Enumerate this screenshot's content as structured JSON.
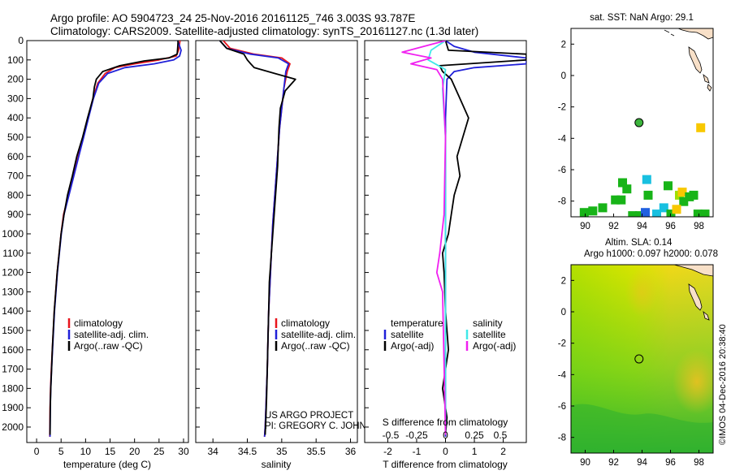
{
  "header": {
    "line1": "Argo profile: AO 5904723_24 25-Nov-2016 20161125_746 3.003S 93.787E",
    "line2": "Climatology: CARS2009. Satellite-adjusted climatology: synTS_20161127.nc (1.3d later)"
  },
  "credits": {
    "project": "US ARGO PROJECT",
    "pi": "PI: GREGORY C. JOHNSON",
    "vertical": "©IMOS 04-Dec-2016 20:38:40"
  },
  "colors": {
    "climatology": "#e8141c",
    "satellite": "#2020d8",
    "argo": "#000000",
    "sal_satellite": "#40e8e8",
    "sal_argo": "#f020f0",
    "marker": "#3cb43c"
  },
  "chart_data": [
    {
      "id": "temperature",
      "type": "line",
      "xlabel": "temperature (deg C)",
      "ylabel": "",
      "xlim": [
        -2,
        31
      ],
      "ylim": [
        2080,
        0
      ],
      "xticks": [
        "0",
        "5",
        "10",
        "15",
        "20",
        "25",
        "30"
      ],
      "xtick_values": [
        0,
        5,
        10,
        15,
        20,
        25,
        30
      ],
      "yticks": [
        "0",
        "100",
        "200",
        "300",
        "400",
        "500",
        "600",
        "700",
        "800",
        "900",
        "1000",
        "1100",
        "1200",
        "1300",
        "1400",
        "1500",
        "1600",
        "1700",
        "1800",
        "1900",
        "2000"
      ],
      "ytick_values": [
        0,
        100,
        200,
        300,
        400,
        500,
        600,
        700,
        800,
        900,
        1000,
        1100,
        1200,
        1300,
        1400,
        1500,
        1600,
        1700,
        1800,
        1900,
        2000
      ],
      "legend": [
        "climatology",
        "satellite-adj. clim.",
        "Argo(..raw -QC)"
      ],
      "series": [
        {
          "name": "climatology",
          "color": "#e8141c",
          "x": [
            29.3,
            29.0,
            28.5,
            25.0,
            20.0,
            16.0,
            14.0,
            12.5,
            11.5,
            10.5,
            9.5,
            8.5,
            7.5,
            6.5,
            5.5,
            5.0,
            4.6,
            4.2,
            3.9,
            3.6,
            3.4,
            3.2,
            3.0,
            2.85,
            2.75,
            2.7
          ],
          "y": [
            0,
            50,
            80,
            100,
            120,
            140,
            170,
            220,
            300,
            400,
            500,
            600,
            700,
            800,
            900,
            1000,
            1100,
            1200,
            1300,
            1400,
            1500,
            1600,
            1700,
            1800,
            1900,
            2050
          ]
        },
        {
          "name": "satellite-adj. clim.",
          "color": "#2020d8",
          "x": [
            28.8,
            29.5,
            29.2,
            28.0,
            24.0,
            18.0,
            14.5,
            12.7,
            11.6,
            10.6,
            9.6,
            8.6,
            7.6,
            6.6,
            5.6,
            5.05,
            4.65,
            4.25,
            3.95,
            3.65,
            3.45,
            3.25,
            3.05,
            2.9,
            2.8,
            2.75
          ],
          "y": [
            0,
            50,
            80,
            100,
            120,
            140,
            170,
            220,
            300,
            400,
            500,
            600,
            700,
            800,
            900,
            1000,
            1100,
            1200,
            1300,
            1400,
            1500,
            1600,
            1700,
            1800,
            1900,
            2050
          ]
        },
        {
          "name": "Argo(..raw -QC)",
          "color": "#000000",
          "x": [
            28.9,
            28.8,
            28.7,
            27.0,
            22.0,
            17.0,
            13.5,
            12.2,
            11.8,
            11.5,
            10.4,
            9.4,
            8.2,
            7.3,
            6.3,
            5.6,
            5.0,
            4.6,
            4.2,
            3.9,
            3.6,
            3.4,
            3.2,
            3.05,
            2.9,
            2.8,
            2.75
          ],
          "y": [
            0,
            40,
            70,
            90,
            105,
            130,
            160,
            200,
            240,
            300,
            400,
            500,
            600,
            700,
            800,
            900,
            1000,
            1100,
            1200,
            1300,
            1400,
            1500,
            1600,
            1700,
            1800,
            1900,
            2040
          ]
        }
      ]
    },
    {
      "id": "salinity",
      "type": "line",
      "xlabel": "salinity",
      "xlim": [
        33.75,
        36.1
      ],
      "ylim": [
        2080,
        0
      ],
      "xticks": [
        "34",
        "34.5",
        "35",
        "35.5",
        "36"
      ],
      "xtick_values": [
        34,
        34.5,
        35,
        35.5,
        36
      ],
      "legend": [
        "climatology",
        "satellite-adj. clim.",
        "Argo(..raw -QC)"
      ],
      "series": [
        {
          "name": "climatology",
          "color": "#e8141c",
          "x": [
            34.15,
            34.25,
            34.6,
            35.0,
            35.12,
            35.08,
            35.03,
            35.0,
            34.97,
            34.95,
            34.93,
            34.91,
            34.89,
            34.87,
            34.85,
            34.83,
            34.81,
            34.8,
            34.79,
            34.78,
            34.77,
            34.76,
            34.75
          ],
          "y": [
            0,
            40,
            70,
            90,
            120,
            160,
            250,
            350,
            450,
            550,
            650,
            750,
            850,
            950,
            1100,
            1250,
            1400,
            1550,
            1700,
            1800,
            1900,
            2000,
            2050
          ]
        },
        {
          "name": "satellite-adj. clim.",
          "color": "#2020d8",
          "x": [
            34.1,
            34.2,
            34.55,
            34.95,
            35.1,
            35.06,
            35.03,
            35.0,
            34.97,
            34.95,
            34.93,
            34.91,
            34.89,
            34.87,
            34.85,
            34.83,
            34.81,
            34.8,
            34.79,
            34.78,
            34.77,
            34.76,
            34.75
          ],
          "y": [
            0,
            40,
            70,
            90,
            120,
            160,
            250,
            350,
            450,
            550,
            650,
            750,
            850,
            950,
            1100,
            1250,
            1400,
            1550,
            1700,
            1800,
            1900,
            2000,
            2050
          ]
        },
        {
          "name": "Argo(..raw -QC)",
          "color": "#000000",
          "x": [
            34.1,
            34.2,
            34.45,
            34.5,
            34.55,
            34.6,
            34.9,
            35.2,
            35.05,
            34.98,
            34.96,
            34.95,
            34.94,
            34.92,
            34.9,
            34.88,
            34.86,
            34.84,
            34.82,
            34.81,
            34.8,
            34.79,
            34.78,
            34.77,
            34.76
          ],
          "y": [
            0,
            40,
            70,
            100,
            120,
            140,
            170,
            200,
            260,
            350,
            450,
            550,
            650,
            750,
            850,
            950,
            1050,
            1150,
            1250,
            1400,
            1550,
            1700,
            1850,
            1950,
            2040
          ]
        }
      ]
    },
    {
      "id": "difference",
      "type": "line",
      "xlabel": "T difference from climatology",
      "xlabel_top": "S difference from climatology",
      "xlim": [
        -2.8,
        2.8
      ],
      "ylim": [
        2080,
        0
      ],
      "xticks": [
        "-2",
        "-1",
        "0",
        "1",
        "2"
      ],
      "xtick_values": [
        -2,
        -1,
        0,
        1,
        2
      ],
      "xticks_top": [
        "-0.5",
        "-0.25",
        "0",
        "0.25",
        "0.5"
      ],
      "xticks_top_values": [
        -1.9,
        -1.0,
        0,
        1.0,
        1.9
      ],
      "legend_headers": [
        "temperature",
        "salinity"
      ],
      "legend": [
        "satellite",
        "Argo(-adj)",
        "satellite",
        "Argo(-adj)"
      ],
      "series": [
        {
          "name": "temperature satellite",
          "color": "#2020d8",
          "x": [
            0,
            0.3,
            1.0,
            2.8,
            2.8,
            1.0,
            0.3,
            0.05,
            0,
            0
          ],
          "y": [
            0,
            30,
            60,
            90,
            120,
            140,
            160,
            200,
            400,
            2050
          ]
        },
        {
          "name": "temperature Argo(-adj)",
          "color": "#000000",
          "x": [
            0,
            0.1,
            2.8,
            2.8,
            -0.2,
            -0.1,
            0.2,
            0.5,
            0.8,
            0.6,
            0.4,
            0.5,
            0.3,
            0.2,
            0.1,
            -0.1,
            -0.05,
            0,
            0.1,
            -0.1,
            0.05,
            0
          ],
          "y": [
            0,
            50,
            70,
            100,
            130,
            160,
            200,
            300,
            400,
            500,
            600,
            700,
            800,
            900,
            1000,
            1100,
            1200,
            1400,
            1600,
            1800,
            1950,
            2040
          ]
        },
        {
          "name": "salinity satellite",
          "color": "#40e8e8",
          "x": [
            0,
            -0.5,
            -0.6,
            0,
            -0.1,
            0,
            0,
            0
          ],
          "y": [
            0,
            50,
            100,
            150,
            250,
            500,
            1000,
            2040
          ]
        },
        {
          "name": "salinity Argo(-adj)",
          "color": "#f020f0",
          "x": [
            0,
            -1.5,
            -0.5,
            -1.2,
            -0.3,
            -0.1,
            0,
            -0.05,
            -0.2,
            -0.3,
            -0.1,
            0
          ],
          "y": [
            0,
            60,
            90,
            120,
            150,
            200,
            500,
            900,
            1100,
            1200,
            1300,
            2040
          ]
        }
      ]
    },
    {
      "id": "sst-map",
      "type": "heatmap",
      "title": "sat. SST: NaN Argo: 29.1",
      "xlim": [
        89,
        99
      ],
      "ylim": [
        -9,
        3
      ],
      "xticks": [
        "90",
        "92",
        "94",
        "96",
        "98"
      ],
      "xtick_values": [
        90,
        92,
        94,
        96,
        98
      ],
      "yticks": [
        "2",
        "0",
        "-2",
        "-4",
        "-6",
        "-8"
      ],
      "ytick_values": [
        2,
        0,
        -2,
        -4,
        -6,
        -8
      ],
      "argo_position": {
        "lon": 93.787,
        "lat": -3.003
      },
      "cells": [
        {
          "lon": 98.1,
          "lat": -3.3,
          "color": "#f8c800"
        },
        {
          "lon": 89.9,
          "lat": -8.7,
          "color": "#18b418"
        },
        {
          "lon": 90.5,
          "lat": -8.6,
          "color": "#18b418"
        },
        {
          "lon": 91.2,
          "lat": -8.4,
          "color": "#18b418"
        },
        {
          "lon": 92.1,
          "lat": -7.9,
          "color": "#18b418"
        },
        {
          "lon": 92.5,
          "lat": -7.9,
          "color": "#18b418"
        },
        {
          "lon": 92.6,
          "lat": -6.8,
          "color": "#18b418"
        },
        {
          "lon": 92.9,
          "lat": -7.2,
          "color": "#18b418"
        },
        {
          "lon": 93.3,
          "lat": -8.9,
          "color": "#18b418"
        },
        {
          "lon": 93.8,
          "lat": -8.9,
          "color": "#18b418"
        },
        {
          "lon": 94.3,
          "lat": -6.6,
          "color": "#18c0e0"
        },
        {
          "lon": 94.2,
          "lat": -8.7,
          "color": "#2060e0"
        },
        {
          "lon": 94.4,
          "lat": -7.6,
          "color": "#18b418"
        },
        {
          "lon": 95.0,
          "lat": -8.8,
          "color": "#18c0e0"
        },
        {
          "lon": 95.5,
          "lat": -8.4,
          "color": "#18c0e0"
        },
        {
          "lon": 95.8,
          "lat": -7.0,
          "color": "#18b418"
        },
        {
          "lon": 96.0,
          "lat": -8.8,
          "color": "#18b418"
        },
        {
          "lon": 96.6,
          "lat": -7.6,
          "color": "#a0e000"
        },
        {
          "lon": 96.8,
          "lat": -7.4,
          "color": "#f8c800"
        },
        {
          "lon": 96.9,
          "lat": -8.0,
          "color": "#18b418"
        },
        {
          "lon": 97.3,
          "lat": -7.7,
          "color": "#18b418"
        },
        {
          "lon": 97.6,
          "lat": -7.6,
          "color": "#18b418"
        },
        {
          "lon": 97.9,
          "lat": -8.8,
          "color": "#18b418"
        },
        {
          "lon": 98.4,
          "lat": -8.8,
          "color": "#18b418"
        },
        {
          "lon": 96.4,
          "lat": -8.5,
          "color": "#f8c800"
        }
      ]
    },
    {
      "id": "sla-map",
      "type": "heatmap",
      "title": "Altim. SLA: 0.14",
      "subtitle": "Argo h1000: 0.097 h2000: 0.078",
      "xlim": [
        89,
        99
      ],
      "ylim": [
        -9,
        3
      ],
      "xticks": [
        "90",
        "92",
        "94",
        "96",
        "98"
      ],
      "xtick_values": [
        90,
        92,
        94,
        96,
        98
      ],
      "yticks": [
        "2",
        "0",
        "-2",
        "-4",
        "-6",
        "-8"
      ],
      "ytick_values": [
        2,
        0,
        -2,
        -4,
        -6,
        -8
      ],
      "argo_position": {
        "lon": 93.787,
        "lat": -3.003
      }
    }
  ]
}
